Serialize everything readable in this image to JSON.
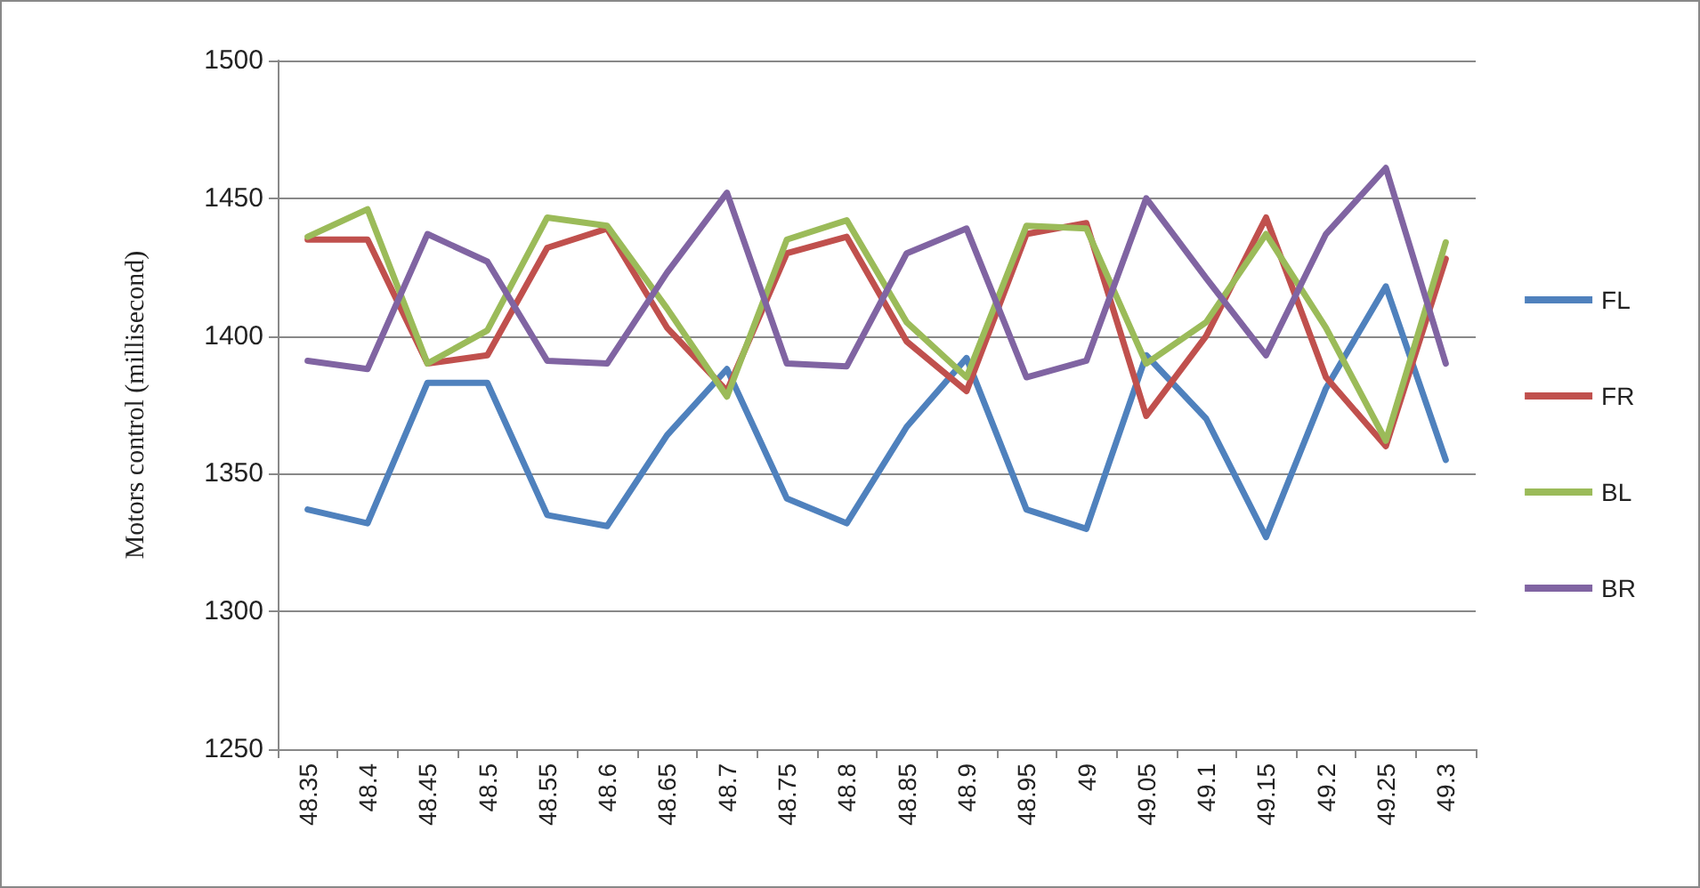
{
  "chart_data": {
    "type": "line",
    "ylabel": "Motors control (millisecond)",
    "categories": [
      "48.35",
      "48.4",
      "48.45",
      "48.5",
      "48.55",
      "48.6",
      "48.65",
      "48.7",
      "48.75",
      "48.8",
      "48.85",
      "48.9",
      "48.95",
      "49",
      "49.05",
      "49.1",
      "49.15",
      "49.2",
      "49.25",
      "49.3"
    ],
    "series": [
      {
        "name": "FL",
        "color": "#4f81bd",
        "values": [
          1337,
          1332,
          1383,
          1383,
          1335,
          1331,
          1364,
          1388,
          1341,
          1332,
          1367,
          1392,
          1337,
          1330,
          1393,
          1370,
          1327,
          1381,
          1418,
          1355
        ]
      },
      {
        "name": "FR",
        "color": "#c0504d",
        "values": [
          1435,
          1435,
          1390,
          1393,
          1432,
          1439,
          1403,
          1380,
          1430,
          1436,
          1398,
          1380,
          1437,
          1441,
          1371,
          1400,
          1443,
          1385,
          1360,
          1428
        ]
      },
      {
        "name": "BL",
        "color": "#9bbb59",
        "values": [
          1436,
          1446,
          1390,
          1402,
          1443,
          1440,
          1410,
          1378,
          1435,
          1442,
          1405,
          1385,
          1440,
          1439,
          1390,
          1405,
          1437,
          1403,
          1362,
          1434
        ]
      },
      {
        "name": "BR",
        "color": "#8064a2",
        "values": [
          1391,
          1388,
          1437,
          1427,
          1391,
          1390,
          1423,
          1452,
          1390,
          1389,
          1430,
          1439,
          1385,
          1391,
          1450,
          1421,
          1393,
          1437,
          1461,
          1390
        ]
      }
    ],
    "ylim": [
      1250,
      1500
    ],
    "yticks": [
      1250,
      1300,
      1350,
      1400,
      1450,
      1500
    ],
    "grid": "y",
    "legend": "right",
    "marker": "none",
    "line_style": "solid"
  }
}
